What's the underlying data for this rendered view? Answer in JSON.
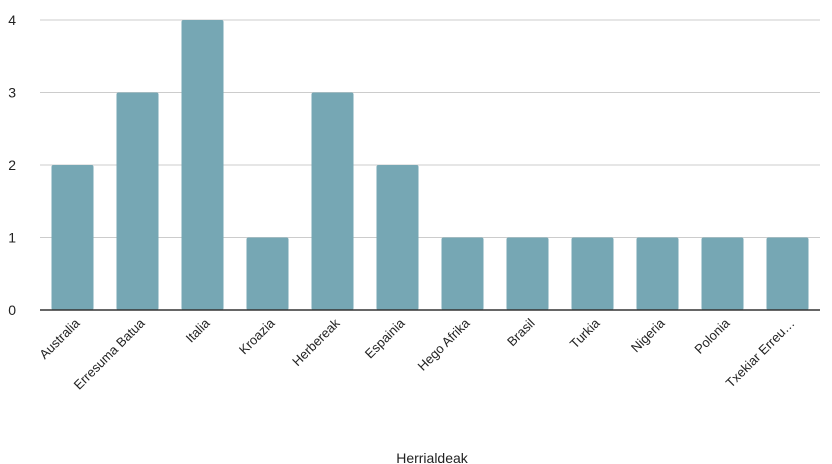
{
  "chart_data": {
    "type": "bar",
    "title": "",
    "xlabel": "Herrialdeak",
    "ylabel": "",
    "categories": [
      "Australia",
      "Erresuma Batua",
      "Italia",
      "Kroazia",
      "Herbereak",
      "Espainia",
      "Hego Afrika",
      "Brasil",
      "Turkia",
      "Nigeria",
      "Polonia",
      "Txekiar Erreu…"
    ],
    "values": [
      2,
      3,
      4,
      1,
      3,
      2,
      1,
      1,
      1,
      1,
      1,
      1
    ],
    "ylim": [
      0,
      4
    ],
    "yticks": [
      "0",
      "1",
      "2",
      "3",
      "4"
    ],
    "grid": true,
    "legend": "none",
    "bar_color": "#76a7b4",
    "grid_color": "#cccccc",
    "axis_color": "#333333"
  }
}
